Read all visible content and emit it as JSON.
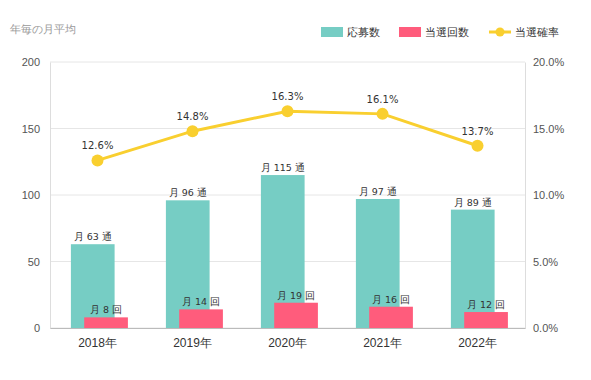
{
  "chart_data": {
    "type": "bar",
    "title": "年毎の月平均",
    "categories": [
      "2018年",
      "2019年",
      "2020年",
      "2021年",
      "2022年"
    ],
    "series": [
      {
        "name": "応募数",
        "type": "bar",
        "color": "#76cdc4",
        "values": [
          63,
          96,
          115,
          97,
          89
        ],
        "value_labels": [
          "月 63 通",
          "月 96 通",
          "月 115 通",
          "月 97 通",
          "月 89 通"
        ]
      },
      {
        "name": "当選回数",
        "type": "bar",
        "color": "#ff5c7c",
        "values": [
          8,
          14,
          19,
          16,
          12
        ],
        "value_labels": [
          "月 8 回",
          "月 14 回",
          "月 19 回",
          "月 16 回",
          "月 12 回"
        ]
      },
      {
        "name": "当選確率",
        "type": "line",
        "axis": "y2",
        "color": "#f9cf2f",
        "marker": "circle",
        "values": [
          12.6,
          14.8,
          16.3,
          16.1,
          13.7
        ],
        "value_labels": [
          "12.6%",
          "14.8%",
          "16.3%",
          "16.1%",
          "13.7%"
        ]
      }
    ],
    "ylim": [
      0,
      200
    ],
    "yticks": [
      0,
      50,
      100,
      150,
      200
    ],
    "y2lim": [
      0,
      20
    ],
    "y2ticks": [
      {
        "value": 0,
        "label": "0.0%"
      },
      {
        "value": 5,
        "label": "5.0%"
      },
      {
        "value": 10,
        "label": "10.0%"
      },
      {
        "value": 15,
        "label": "15.0%"
      },
      {
        "value": 20,
        "label": "20.0%"
      }
    ],
    "grid": true,
    "legend": "top-right",
    "data_labels": true
  }
}
